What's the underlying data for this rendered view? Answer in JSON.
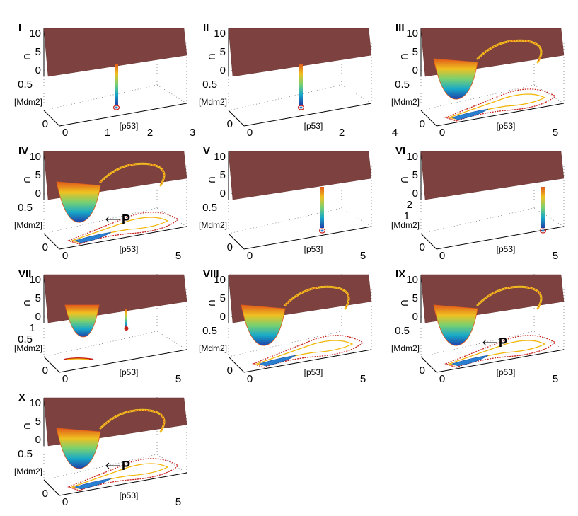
{
  "figure": {
    "panels": [
      {
        "id": "I",
        "label": "I",
        "z_ticks": [
          "10",
          "5",
          "0"
        ],
        "y_ticks": [
          "0.5",
          "0"
        ],
        "y_label": "[Mdm2]",
        "x_ticks": [
          "0",
          "1",
          "2",
          "3"
        ],
        "x_label": "[p53]",
        "z_label": "U",
        "marker": ""
      },
      {
        "id": "II",
        "label": "II",
        "z_ticks": [
          "10",
          "5",
          "0"
        ],
        "y_ticks": [
          "0.5",
          "0"
        ],
        "y_label": "[Mdm2]",
        "x_ticks": [
          "0",
          "2",
          "4"
        ],
        "x_label": "[p53]",
        "z_label": "U",
        "marker": ""
      },
      {
        "id": "III",
        "label": "III",
        "z_ticks": [
          "10",
          "5",
          "0"
        ],
        "y_ticks": [
          "0.5",
          "0"
        ],
        "y_label": "[Mdm2]",
        "x_ticks": [
          "0",
          "5"
        ],
        "x_label": "[p53]",
        "z_label": "U",
        "marker": ""
      },
      {
        "id": "IV",
        "label": "IV",
        "z_ticks": [
          "10",
          "5",
          "0"
        ],
        "y_ticks": [
          "0.5",
          "0"
        ],
        "y_label": "[Mdm2]",
        "x_ticks": [
          "0",
          "5"
        ],
        "x_label": "[p53]",
        "z_label": "U",
        "marker": "P"
      },
      {
        "id": "V",
        "label": "V",
        "z_ticks": [
          "10",
          "5",
          "0"
        ],
        "y_ticks": [
          "0.5",
          "0"
        ],
        "y_label": "[Mdm2]",
        "x_ticks": [
          "0",
          "5"
        ],
        "x_label": "[p53]",
        "z_label": "U",
        "marker": ""
      },
      {
        "id": "VI",
        "label": "VI",
        "z_ticks": [
          "10",
          "5",
          "0"
        ],
        "y_ticks": [
          "2",
          "1",
          "0"
        ],
        "y_label": "[Mdm2]",
        "x_ticks": [
          "0",
          "5"
        ],
        "x_label": "[p53]",
        "z_label": "U",
        "marker": ""
      },
      {
        "id": "VII",
        "label": "VII",
        "z_ticks": [
          "10",
          "5",
          "0"
        ],
        "y_ticks": [
          "1",
          "0.5",
          "0"
        ],
        "y_label": "[Mdm2]",
        "x_ticks": [
          "0",
          "5"
        ],
        "x_label": "[p53]",
        "z_label": "U",
        "marker": ""
      },
      {
        "id": "VIII",
        "label": "VIII",
        "z_ticks": [
          "10",
          "5",
          "0"
        ],
        "y_ticks": [
          "0.5",
          "0"
        ],
        "y_label": "[Mdm2]",
        "x_ticks": [
          "0",
          "5"
        ],
        "x_label": "[p53]",
        "z_label": "U",
        "marker": ""
      },
      {
        "id": "IX",
        "label": "IX",
        "z_ticks": [
          "10",
          "5",
          "0"
        ],
        "y_ticks": [
          "0.5",
          "0"
        ],
        "y_label": "[Mdm2]",
        "x_ticks": [
          "0",
          "5"
        ],
        "x_label": "[p53]",
        "z_label": "U",
        "marker": "P"
      },
      {
        "id": "X",
        "label": "X",
        "z_ticks": [
          "10",
          "5",
          "0"
        ],
        "y_ticks": [
          "0.5",
          "0"
        ],
        "y_label": "[Mdm2]",
        "x_ticks": [
          "0",
          "5"
        ],
        "x_label": "[p53]",
        "z_label": "U",
        "marker": "P"
      }
    ]
  },
  "chart_data": [
    {
      "type": "surface",
      "panel": "I",
      "zlabel": "U",
      "ylabel": "[Mdm2]",
      "xlabel": "[p53]",
      "xlim": [
        0,
        3
      ],
      "ylim": [
        0,
        0.5
      ],
      "zlim": [
        0,
        10
      ],
      "surface": "flat plane with a single narrow well"
    },
    {
      "type": "surface",
      "panel": "II",
      "zlabel": "U",
      "ylabel": "[Mdm2]",
      "xlabel": "[p53]",
      "xlim": [
        0,
        4
      ],
      "ylim": [
        0,
        0.5
      ],
      "zlim": [
        0,
        10
      ],
      "surface": "flat plane with a single narrow well"
    },
    {
      "type": "surface",
      "panel": "III",
      "zlabel": "U",
      "ylabel": "[Mdm2]",
      "xlabel": "[p53]",
      "xlim": [
        0,
        5
      ],
      "ylim": [
        0,
        0.5
      ],
      "zlim": [
        0,
        10
      ],
      "surface": "deep basin with ring-shaped valley"
    },
    {
      "type": "surface",
      "panel": "IV",
      "zlabel": "U",
      "ylabel": "[Mdm2]",
      "xlabel": "[p53]",
      "xlim": [
        0,
        5
      ],
      "ylim": [
        0,
        0.5
      ],
      "zlim": [
        0,
        10
      ],
      "surface": "deep basin with ring-shaped valley",
      "annotation": "P"
    },
    {
      "type": "surface",
      "panel": "V",
      "zlabel": "U",
      "ylabel": "[Mdm2]",
      "xlabel": "[p53]",
      "xlim": [
        0,
        5
      ],
      "ylim": [
        0,
        0.5
      ],
      "zlim": [
        0,
        10
      ],
      "surface": "flat plane with a single narrow well"
    },
    {
      "type": "surface",
      "panel": "VI",
      "zlabel": "U",
      "ylabel": "[Mdm2]",
      "xlabel": "[p53]",
      "xlim": [
        0,
        5
      ],
      "ylim": [
        0,
        2
      ],
      "zlim": [
        0,
        10
      ],
      "surface": "flat plane with a single narrow well"
    },
    {
      "type": "surface",
      "panel": "VII",
      "zlabel": "U",
      "ylabel": "[Mdm2]",
      "xlabel": "[p53]",
      "xlim": [
        0,
        5
      ],
      "ylim": [
        0,
        1
      ],
      "zlim": [
        0,
        10
      ],
      "surface": "shallow well plus narrow well"
    },
    {
      "type": "surface",
      "panel": "VIII",
      "zlabel": "U",
      "ylabel": "[Mdm2]",
      "xlabel": "[p53]",
      "xlim": [
        0,
        5
      ],
      "ylim": [
        0,
        0.5
      ],
      "zlim": [
        0,
        10
      ],
      "surface": "deep basin with ring-shaped valley"
    },
    {
      "type": "surface",
      "panel": "IX",
      "zlabel": "U",
      "ylabel": "[Mdm2]",
      "xlabel": "[p53]",
      "xlim": [
        0,
        5
      ],
      "ylim": [
        0,
        0.5
      ],
      "zlim": [
        0,
        10
      ],
      "surface": "deep basin with ring-shaped valley",
      "annotation": "P"
    },
    {
      "type": "surface",
      "panel": "X",
      "zlabel": "U",
      "ylabel": "[Mdm2]",
      "xlabel": "[p53]",
      "xlim": [
        0,
        5
      ],
      "ylim": [
        0,
        0.5
      ],
      "zlim": [
        0,
        10
      ],
      "surface": "deep basin with ring-shaped valley",
      "annotation": "P"
    }
  ],
  "colors": {
    "plane": "#7d4240",
    "plane_edge": "#6a3533",
    "well_deep": "#1f3fa8",
    "well_mid": "#18a8c8",
    "well_shallow": "#f0c020",
    "well_rim": "#e05a1a",
    "contour_outer": "#c8201a",
    "contour_mid": "#f2b400",
    "contour_inner": "#2a80d0"
  }
}
